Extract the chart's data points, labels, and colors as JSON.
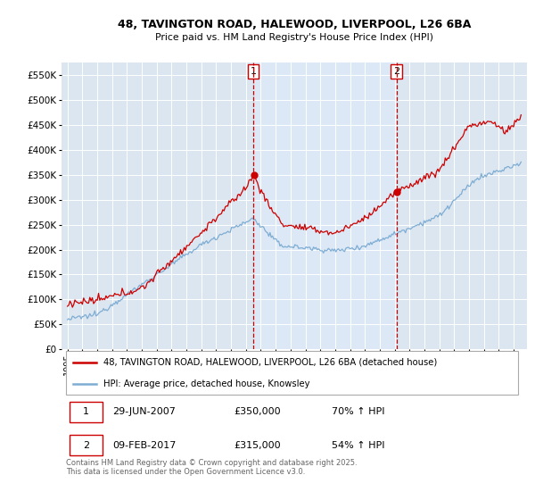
{
  "title_line1": "48, TAVINGTON ROAD, HALEWOOD, LIVERPOOL, L26 6BA",
  "title_line2": "Price paid vs. HM Land Registry's House Price Index (HPI)",
  "background_color": "#ffffff",
  "plot_bg_color": "#dce6f0",
  "shade_color": "#dce8f5",
  "grid_color": "#ffffff",
  "line1_color": "#cc0000",
  "line2_color": "#7eadd4",
  "marker1_x": 2007.497,
  "marker2_x": 2017.117,
  "legend_line1": "48, TAVINGTON ROAD, HALEWOOD, LIVERPOOL, L26 6BA (detached house)",
  "legend_line2": "HPI: Average price, detached house, Knowsley",
  "table_row1": [
    "1",
    "29-JUN-2007",
    "£350,000",
    "70% ↑ HPI"
  ],
  "table_row2": [
    "2",
    "09-FEB-2017",
    "£315,000",
    "54% ↑ HPI"
  ],
  "footer": "Contains HM Land Registry data © Crown copyright and database right 2025.\nThis data is licensed under the Open Government Licence v3.0.",
  "ylim_max": 575000,
  "ylim_min": 0,
  "xlim_min": 1994.6,
  "xlim_max": 2025.9
}
